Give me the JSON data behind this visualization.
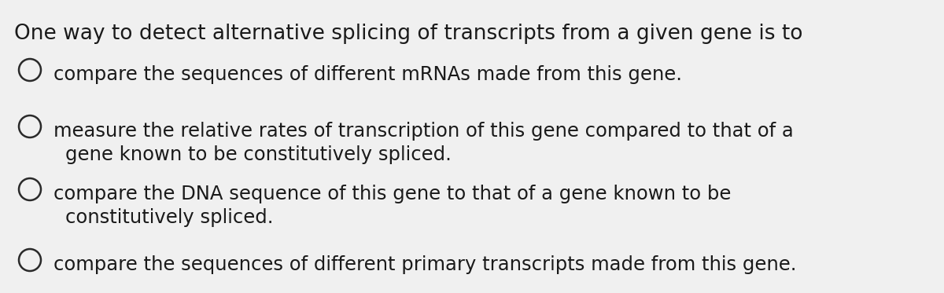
{
  "background_color": "#f0f0f0",
  "title_text": "One way to detect alternative splicing of transcripts from a given gene is to",
  "title_fontsize": 19,
  "options": [
    {
      "line1": "compare the sequences of different mRNAs made from this gene.",
      "line2": null
    },
    {
      "line1": "measure the relative rates of transcription of this gene compared to that of a",
      "line2": "gene known to be constitutively spliced."
    },
    {
      "line1": "compare the DNA sequence of this gene to that of a gene known to be",
      "line2": "constitutively spliced."
    },
    {
      "line1": "compare the sequences of different primary transcripts made from this gene.",
      "line2": null
    }
  ],
  "option_fontsize": 17.5,
  "text_color": "#1a1a1a",
  "circle_color": "#2a2a2a",
  "circle_linewidth": 1.8
}
